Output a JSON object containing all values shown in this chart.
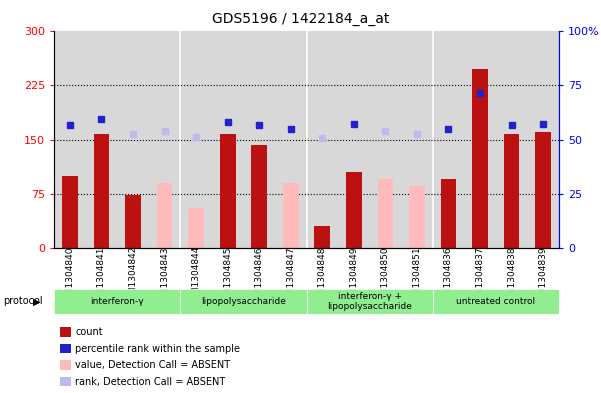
{
  "title": "GDS5196 / 1422184_a_at",
  "samples": [
    "GSM1304840",
    "GSM1304841",
    "GSM1304842",
    "GSM1304843",
    "GSM1304844",
    "GSM1304845",
    "GSM1304846",
    "GSM1304847",
    "GSM1304848",
    "GSM1304849",
    "GSM1304850",
    "GSM1304851",
    "GSM1304836",
    "GSM1304837",
    "GSM1304838",
    "GSM1304839"
  ],
  "count_values": [
    100,
    158,
    73,
    null,
    null,
    158,
    143,
    null,
    30,
    105,
    null,
    null,
    95,
    248,
    158,
    160
  ],
  "count_absent": [
    null,
    null,
    null,
    90,
    55,
    null,
    null,
    90,
    null,
    null,
    95,
    85,
    null,
    null,
    null,
    null
  ],
  "rank_values": [
    170,
    178,
    null,
    null,
    null,
    175,
    170,
    165,
    null,
    172,
    null,
    null,
    165,
    215,
    170,
    172
  ],
  "rank_absent": [
    null,
    null,
    158,
    162,
    153,
    null,
    null,
    null,
    152,
    null,
    162,
    158,
    null,
    null,
    null,
    null
  ],
  "groups": [
    {
      "label": "interferon-γ",
      "start": 0,
      "end": 3,
      "color": "#aaddaa"
    },
    {
      "label": "lipopolysaccharide",
      "start": 4,
      "end": 7,
      "color": "#aaddaa"
    },
    {
      "label": "interferon-γ +\nlipopolysaccharide",
      "start": 8,
      "end": 11,
      "color": "#aaddaa"
    },
    {
      "label": "untreated control",
      "start": 12,
      "end": 15,
      "color": "#aaddaa"
    }
  ],
  "ylim_left": [
    0,
    300
  ],
  "ylim_right": [
    0,
    100
  ],
  "yticks_left": [
    0,
    75,
    150,
    225,
    300
  ],
  "ytick_labels_left": [
    "0",
    "75",
    "150",
    "225",
    "300"
  ],
  "yticks_right": [
    0,
    25,
    50,
    75,
    100
  ],
  "ytick_labels_right": [
    "0",
    "25",
    "50",
    "75",
    "100%"
  ],
  "hlines": [
    75,
    150,
    225
  ],
  "bar_color_present": "#bb1111",
  "bar_color_absent": "#ffbbbb",
  "rank_color_present": "#2222cc",
  "rank_color_absent": "#bbbbee",
  "bar_width": 0.5,
  "plot_bg": "#d8d8d8",
  "legend_items": [
    {
      "label": "count",
      "color": "#bb1111"
    },
    {
      "label": "percentile rank within the sample",
      "color": "#2222cc"
    },
    {
      "label": "value, Detection Call = ABSENT",
      "color": "#ffbbbb"
    },
    {
      "label": "rank, Detection Call = ABSENT",
      "color": "#bbbbee"
    }
  ]
}
